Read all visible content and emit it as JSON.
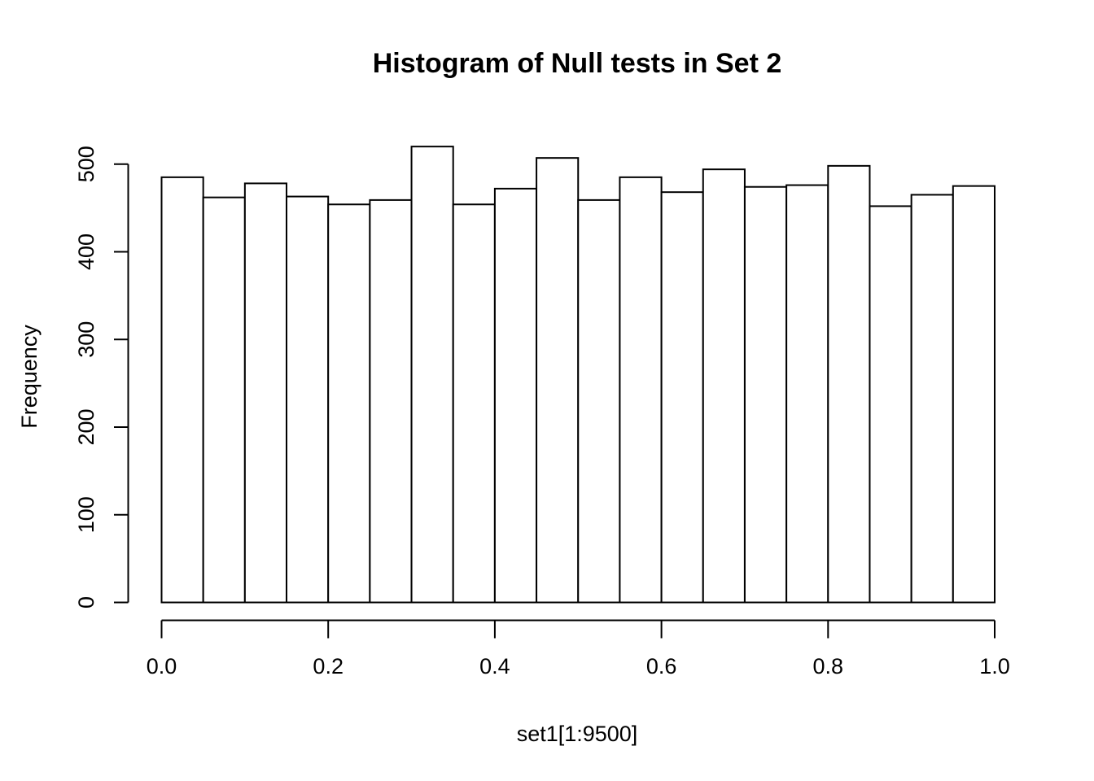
{
  "chart_data": {
    "type": "bar",
    "subtype": "histogram",
    "title": "Histogram of Null tests in Set 2",
    "xlabel": "set1[1:9500]",
    "ylabel": "Frequency",
    "bins": {
      "start": 0.0,
      "end": 1.0,
      "width": 0.05,
      "count": 20
    },
    "values": [
      485,
      462,
      478,
      463,
      454,
      459,
      520,
      454,
      472,
      507,
      459,
      485,
      468,
      494,
      474,
      476,
      498,
      452,
      465,
      475
    ],
    "x_tick_labels": [
      "0.0",
      "0.2",
      "0.4",
      "0.6",
      "0.8",
      "1.0"
    ],
    "y_tick_labels": [
      "0",
      "100",
      "200",
      "300",
      "400",
      "500"
    ],
    "xlim": [
      0,
      1
    ],
    "ylim": [
      0,
      500
    ],
    "grid": false,
    "legend": false,
    "bar_fill": "#ffffff",
    "bar_stroke": "#000000",
    "axis_color": "#000000",
    "text_color": "#000000",
    "background": "#ffffff"
  }
}
